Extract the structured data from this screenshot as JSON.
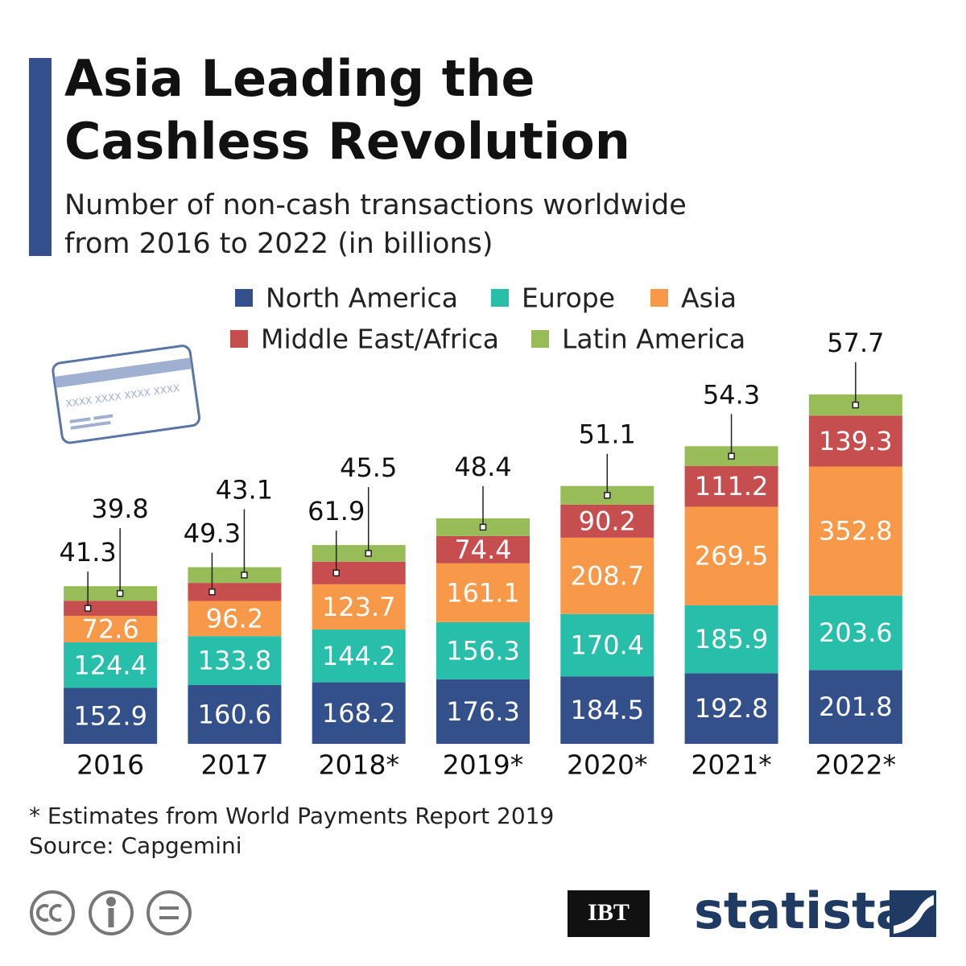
{
  "chart_data": {
    "type": "stacked_bar",
    "title": [
      "Asia Leading the",
      "Cashless Revolution"
    ],
    "subtitle": [
      "Number of non-cash transactions worldwide",
      "from 2016 to 2022 (in billions)"
    ],
    "categories": [
      "2016",
      "2017",
      "2018*",
      "2019*",
      "2020*",
      "2021*",
      "2022*"
    ],
    "series": [
      {
        "name": "North America",
        "color": "#34508a",
        "values": [
          152.9,
          160.6,
          168.2,
          176.3,
          184.5,
          192.8,
          201.8
        ]
      },
      {
        "name": "Europe",
        "color": "#27bfa9",
        "values": [
          124.4,
          133.8,
          144.2,
          156.3,
          170.4,
          185.9,
          203.6
        ]
      },
      {
        "name": "Asia",
        "color": "#f8994a",
        "values": [
          72.6,
          96.2,
          123.7,
          161.1,
          208.7,
          269.5,
          352.8
        ]
      },
      {
        "name": "Middle East/Africa",
        "color": "#c74e4e",
        "values": [
          41.3,
          49.3,
          61.9,
          74.4,
          90.2,
          111.2,
          139.3
        ]
      },
      {
        "name": "Latin America",
        "color": "#98bd58",
        "values": [
          39.8,
          43.1,
          45.5,
          48.4,
          51.1,
          54.3,
          57.7
        ]
      }
    ],
    "footnote": "* Estimates from World Payments Report 2019",
    "source": "Source: Capgemini"
  },
  "card": {
    "number": "XXXX XXXX XXXX XXXX"
  },
  "branding": {
    "ibt": "IBT",
    "statista": "statista"
  }
}
